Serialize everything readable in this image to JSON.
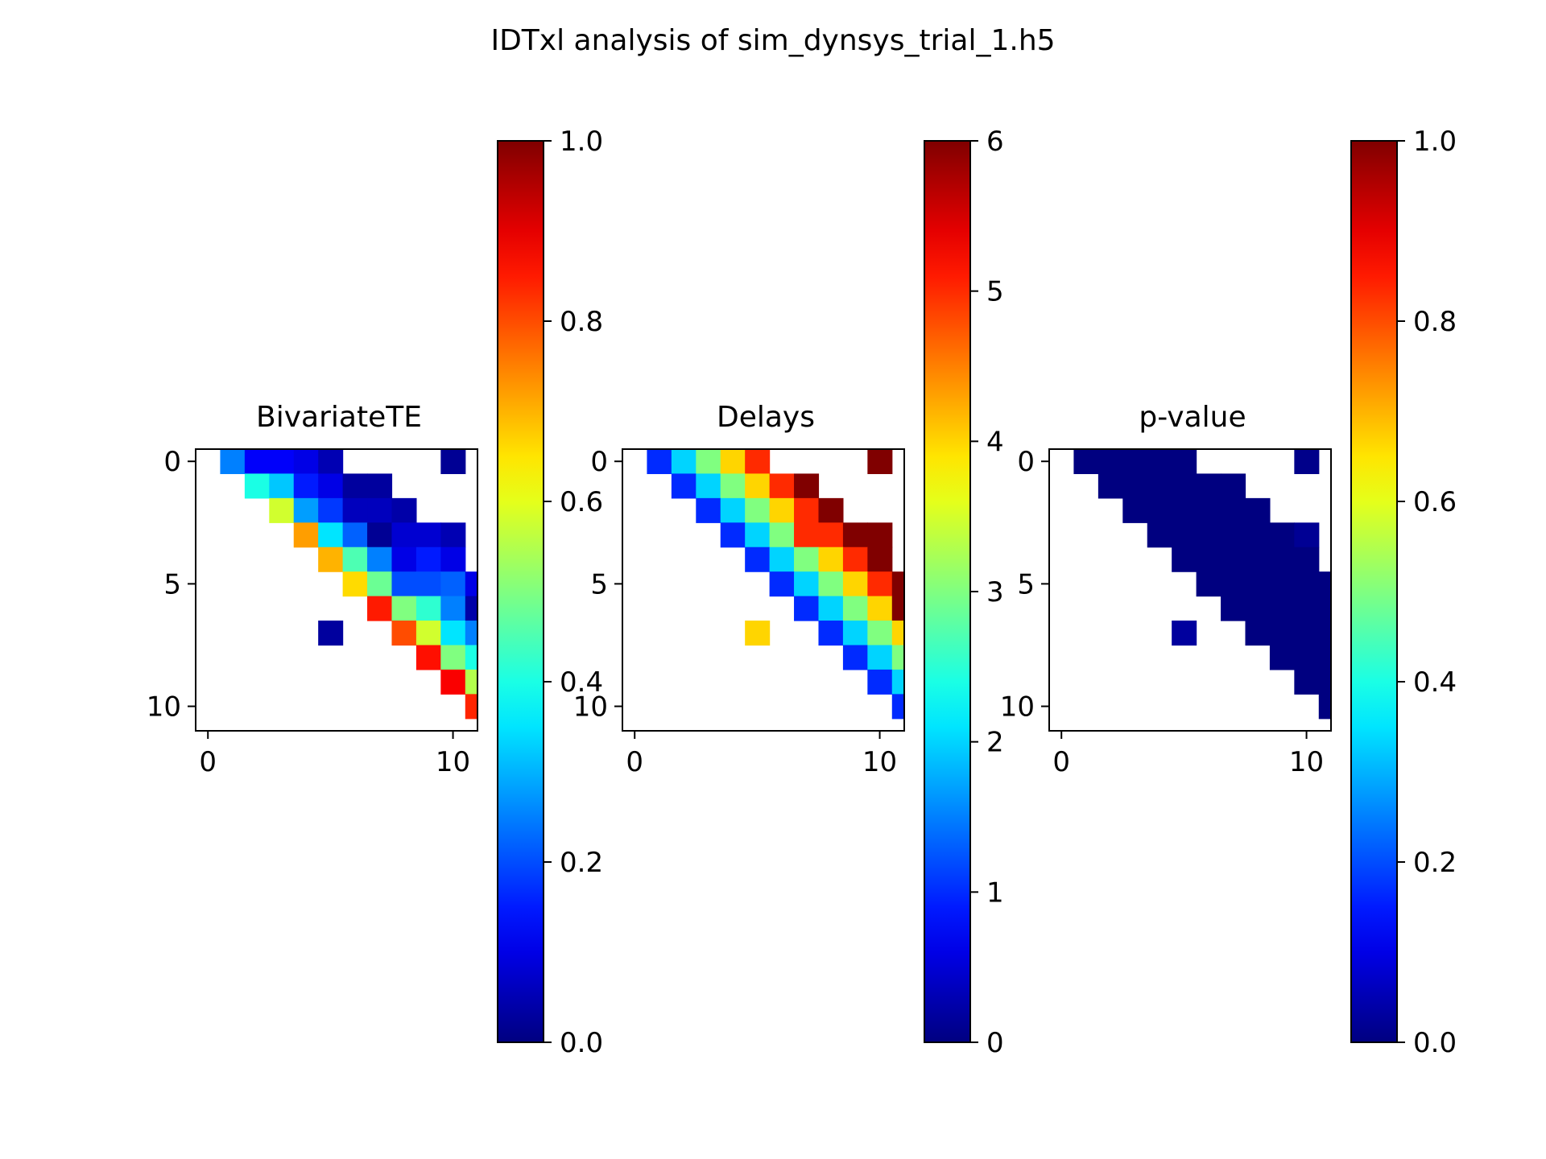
{
  "figure": {
    "title": "IDTxl analysis of sim_dynsys_trial_1.h5",
    "background": "#ffffff"
  },
  "chart_data": [
    {
      "type": "heatmap",
      "title": "BivariateTE",
      "colormap": "jet",
      "x_ticks": [
        0,
        10
      ],
      "y_ticks": [
        0,
        5,
        10
      ],
      "shape": [
        12,
        12
      ],
      "value_range": [
        0,
        1
      ],
      "colorbar": {
        "range": [
          0.0,
          1.0
        ],
        "ticks": [
          0.0,
          0.2,
          0.4,
          0.6,
          0.8,
          1.0
        ],
        "tick_labels": [
          "0.0",
          "0.2",
          "0.4",
          "0.6",
          "0.8",
          "1.0"
        ]
      },
      "cells": [
        [
          0,
          1,
          0.25
        ],
        [
          0,
          2,
          0.12
        ],
        [
          0,
          3,
          0.12
        ],
        [
          0,
          4,
          0.1
        ],
        [
          0,
          5,
          0.05
        ],
        [
          0,
          10,
          0.02
        ],
        [
          1,
          2,
          0.4
        ],
        [
          1,
          3,
          0.32
        ],
        [
          1,
          4,
          0.15
        ],
        [
          1,
          5,
          0.1
        ],
        [
          1,
          6,
          0.03
        ],
        [
          1,
          7,
          0.03
        ],
        [
          2,
          3,
          0.58
        ],
        [
          2,
          4,
          0.28
        ],
        [
          2,
          5,
          0.18
        ],
        [
          2,
          6,
          0.06
        ],
        [
          2,
          7,
          0.06
        ],
        [
          2,
          8,
          0.04
        ],
        [
          3,
          4,
          0.72
        ],
        [
          3,
          5,
          0.35
        ],
        [
          3,
          6,
          0.22
        ],
        [
          3,
          7,
          0.02
        ],
        [
          3,
          8,
          0.08
        ],
        [
          3,
          9,
          0.08
        ],
        [
          3,
          10,
          0.05
        ],
        [
          4,
          5,
          0.7
        ],
        [
          4,
          6,
          0.45
        ],
        [
          4,
          7,
          0.25
        ],
        [
          4,
          8,
          0.1
        ],
        [
          4,
          9,
          0.15
        ],
        [
          4,
          10,
          0.1
        ],
        [
          5,
          6,
          0.66
        ],
        [
          5,
          7,
          0.48
        ],
        [
          5,
          8,
          0.2
        ],
        [
          5,
          9,
          0.2
        ],
        [
          5,
          10,
          0.22
        ],
        [
          5,
          11,
          0.1
        ],
        [
          6,
          7,
          0.85
        ],
        [
          6,
          8,
          0.5
        ],
        [
          6,
          9,
          0.42
        ],
        [
          6,
          10,
          0.25
        ],
        [
          6,
          11,
          0.04
        ],
        [
          7,
          5,
          0.03
        ],
        [
          7,
          8,
          0.8
        ],
        [
          7,
          9,
          0.58
        ],
        [
          7,
          10,
          0.35
        ],
        [
          7,
          11,
          0.25
        ],
        [
          8,
          9,
          0.86
        ],
        [
          8,
          10,
          0.5
        ],
        [
          8,
          11,
          0.4
        ],
        [
          9,
          10,
          0.88
        ],
        [
          9,
          11,
          0.55
        ],
        [
          10,
          11,
          0.84
        ]
      ]
    },
    {
      "type": "heatmap",
      "title": "Delays",
      "colormap": "jet",
      "x_ticks": [
        0,
        10
      ],
      "y_ticks": [
        0,
        5,
        10
      ],
      "shape": [
        12,
        12
      ],
      "value_range": [
        0,
        6
      ],
      "colorbar": {
        "range": [
          0,
          6
        ],
        "ticks": [
          0,
          1,
          2,
          3,
          4,
          5,
          6
        ],
        "tick_labels": [
          "0",
          "1",
          "2",
          "3",
          "4",
          "5",
          "6"
        ]
      },
      "cells": [
        [
          0,
          1,
          1
        ],
        [
          0,
          2,
          2
        ],
        [
          0,
          3,
          3
        ],
        [
          0,
          4,
          4
        ],
        [
          0,
          5,
          5
        ],
        [
          0,
          10,
          6
        ],
        [
          1,
          2,
          1
        ],
        [
          1,
          3,
          2
        ],
        [
          1,
          4,
          3
        ],
        [
          1,
          5,
          4
        ],
        [
          1,
          6,
          5
        ],
        [
          1,
          7,
          6
        ],
        [
          2,
          3,
          1
        ],
        [
          2,
          4,
          2
        ],
        [
          2,
          5,
          3
        ],
        [
          2,
          6,
          4
        ],
        [
          2,
          7,
          5
        ],
        [
          2,
          8,
          6
        ],
        [
          3,
          4,
          1
        ],
        [
          3,
          5,
          2
        ],
        [
          3,
          6,
          3
        ],
        [
          3,
          7,
          5
        ],
        [
          3,
          8,
          5
        ],
        [
          3,
          9,
          6
        ],
        [
          3,
          10,
          6
        ],
        [
          4,
          5,
          1
        ],
        [
          4,
          6,
          2
        ],
        [
          4,
          7,
          3
        ],
        [
          4,
          8,
          4
        ],
        [
          4,
          9,
          5
        ],
        [
          4,
          10,
          6
        ],
        [
          5,
          6,
          1
        ],
        [
          5,
          7,
          2
        ],
        [
          5,
          8,
          3
        ],
        [
          5,
          9,
          4
        ],
        [
          5,
          10,
          5
        ],
        [
          5,
          11,
          6
        ],
        [
          6,
          7,
          1
        ],
        [
          6,
          8,
          2
        ],
        [
          6,
          9,
          3
        ],
        [
          6,
          10,
          4
        ],
        [
          6,
          11,
          6
        ],
        [
          7,
          5,
          4
        ],
        [
          7,
          8,
          1
        ],
        [
          7,
          9,
          2
        ],
        [
          7,
          10,
          3
        ],
        [
          7,
          11,
          4
        ],
        [
          8,
          9,
          1
        ],
        [
          8,
          10,
          2
        ],
        [
          8,
          11,
          3
        ],
        [
          9,
          10,
          1
        ],
        [
          9,
          11,
          2
        ],
        [
          10,
          11,
          1
        ]
      ]
    },
    {
      "type": "heatmap",
      "title": "p-value",
      "colormap": "jet",
      "x_ticks": [
        0,
        10
      ],
      "y_ticks": [
        0,
        5,
        10
      ],
      "shape": [
        12,
        12
      ],
      "value_range": [
        0,
        1
      ],
      "colorbar": {
        "range": [
          0.0,
          1.0
        ],
        "ticks": [
          0.0,
          0.2,
          0.4,
          0.6,
          0.8,
          1.0
        ],
        "tick_labels": [
          "0.0",
          "0.2",
          "0.4",
          "0.6",
          "0.8",
          "1.0"
        ]
      },
      "cells": [
        [
          0,
          1,
          0
        ],
        [
          0,
          2,
          0
        ],
        [
          0,
          3,
          0
        ],
        [
          0,
          4,
          0
        ],
        [
          0,
          5,
          0
        ],
        [
          0,
          10,
          0.01
        ],
        [
          1,
          2,
          0
        ],
        [
          1,
          3,
          0
        ],
        [
          1,
          4,
          0
        ],
        [
          1,
          5,
          0
        ],
        [
          1,
          6,
          0
        ],
        [
          1,
          7,
          0
        ],
        [
          2,
          3,
          0
        ],
        [
          2,
          4,
          0
        ],
        [
          2,
          5,
          0
        ],
        [
          2,
          6,
          0
        ],
        [
          2,
          7,
          0
        ],
        [
          2,
          8,
          0
        ],
        [
          3,
          4,
          0
        ],
        [
          3,
          5,
          0
        ],
        [
          3,
          6,
          0
        ],
        [
          3,
          7,
          0
        ],
        [
          3,
          8,
          0
        ],
        [
          3,
          9,
          0
        ],
        [
          3,
          10,
          0.02
        ],
        [
          4,
          5,
          0
        ],
        [
          4,
          6,
          0
        ],
        [
          4,
          7,
          0
        ],
        [
          4,
          8,
          0
        ],
        [
          4,
          9,
          0
        ],
        [
          4,
          10,
          0
        ],
        [
          5,
          6,
          0
        ],
        [
          5,
          7,
          0
        ],
        [
          5,
          8,
          0
        ],
        [
          5,
          9,
          0
        ],
        [
          5,
          10,
          0
        ],
        [
          5,
          11,
          0
        ],
        [
          6,
          7,
          0
        ],
        [
          6,
          8,
          0
        ],
        [
          6,
          9,
          0
        ],
        [
          6,
          10,
          0
        ],
        [
          6,
          11,
          0
        ],
        [
          7,
          5,
          0.03
        ],
        [
          7,
          8,
          0
        ],
        [
          7,
          9,
          0
        ],
        [
          7,
          10,
          0
        ],
        [
          7,
          11,
          0
        ],
        [
          8,
          9,
          0
        ],
        [
          8,
          10,
          0
        ],
        [
          8,
          11,
          0
        ],
        [
          9,
          10,
          0
        ],
        [
          9,
          11,
          0
        ],
        [
          10,
          11,
          0
        ]
      ]
    }
  ]
}
